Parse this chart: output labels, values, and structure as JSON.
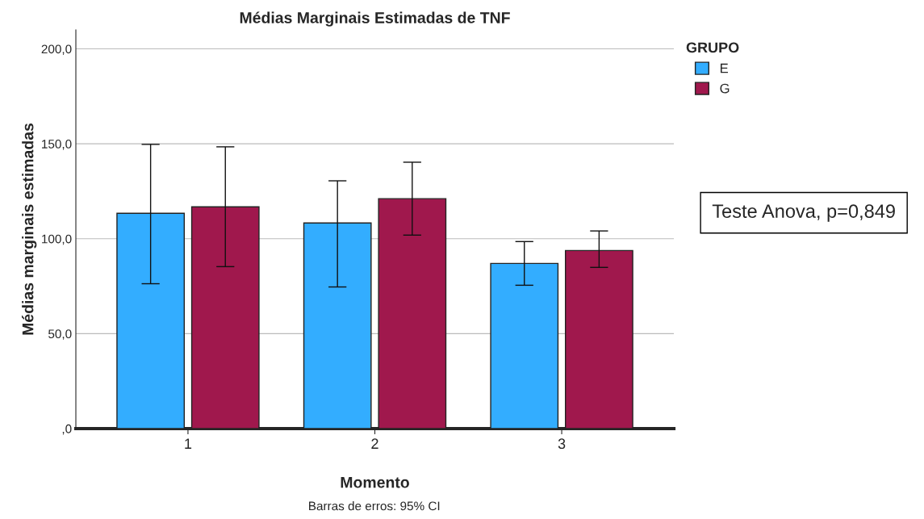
{
  "chart_data": {
    "type": "bar",
    "title": "Médias Marginais Estimadas de TNF",
    "xlabel": "Momento",
    "ylabel": "Médias marginais estimadas",
    "legend_title": "GRUPO",
    "categories": [
      "1",
      "2",
      "3"
    ],
    "series": [
      {
        "name": "E",
        "color": "#33adff",
        "values": [
          113.4,
          108.3,
          87.0
        ],
        "errors": [
          [
            76.3,
            149.7
          ],
          [
            74.6,
            130.5
          ],
          [
            75.5,
            98.5
          ]
        ]
      },
      {
        "name": "G",
        "color": "#a0184d",
        "values": [
          116.8,
          121.1,
          93.8
        ],
        "errors": [
          [
            85.3,
            148.4
          ],
          [
            101.9,
            140.3
          ],
          [
            84.9,
            104.1
          ]
        ]
      }
    ],
    "ylim": [
      0,
      210
    ],
    "yticks": [
      {
        "value": 0,
        "label": ",0"
      },
      {
        "value": 50,
        "label": "50,0"
      },
      {
        "value": 100,
        "label": "100,0"
      },
      {
        "value": 150,
        "label": "150,0"
      },
      {
        "value": 200,
        "label": "200,0"
      }
    ],
    "grid": "y",
    "legend": "top right",
    "annotations": [
      "Teste Anova, p=0,849",
      "Barras de erros: 95% CI"
    ]
  }
}
